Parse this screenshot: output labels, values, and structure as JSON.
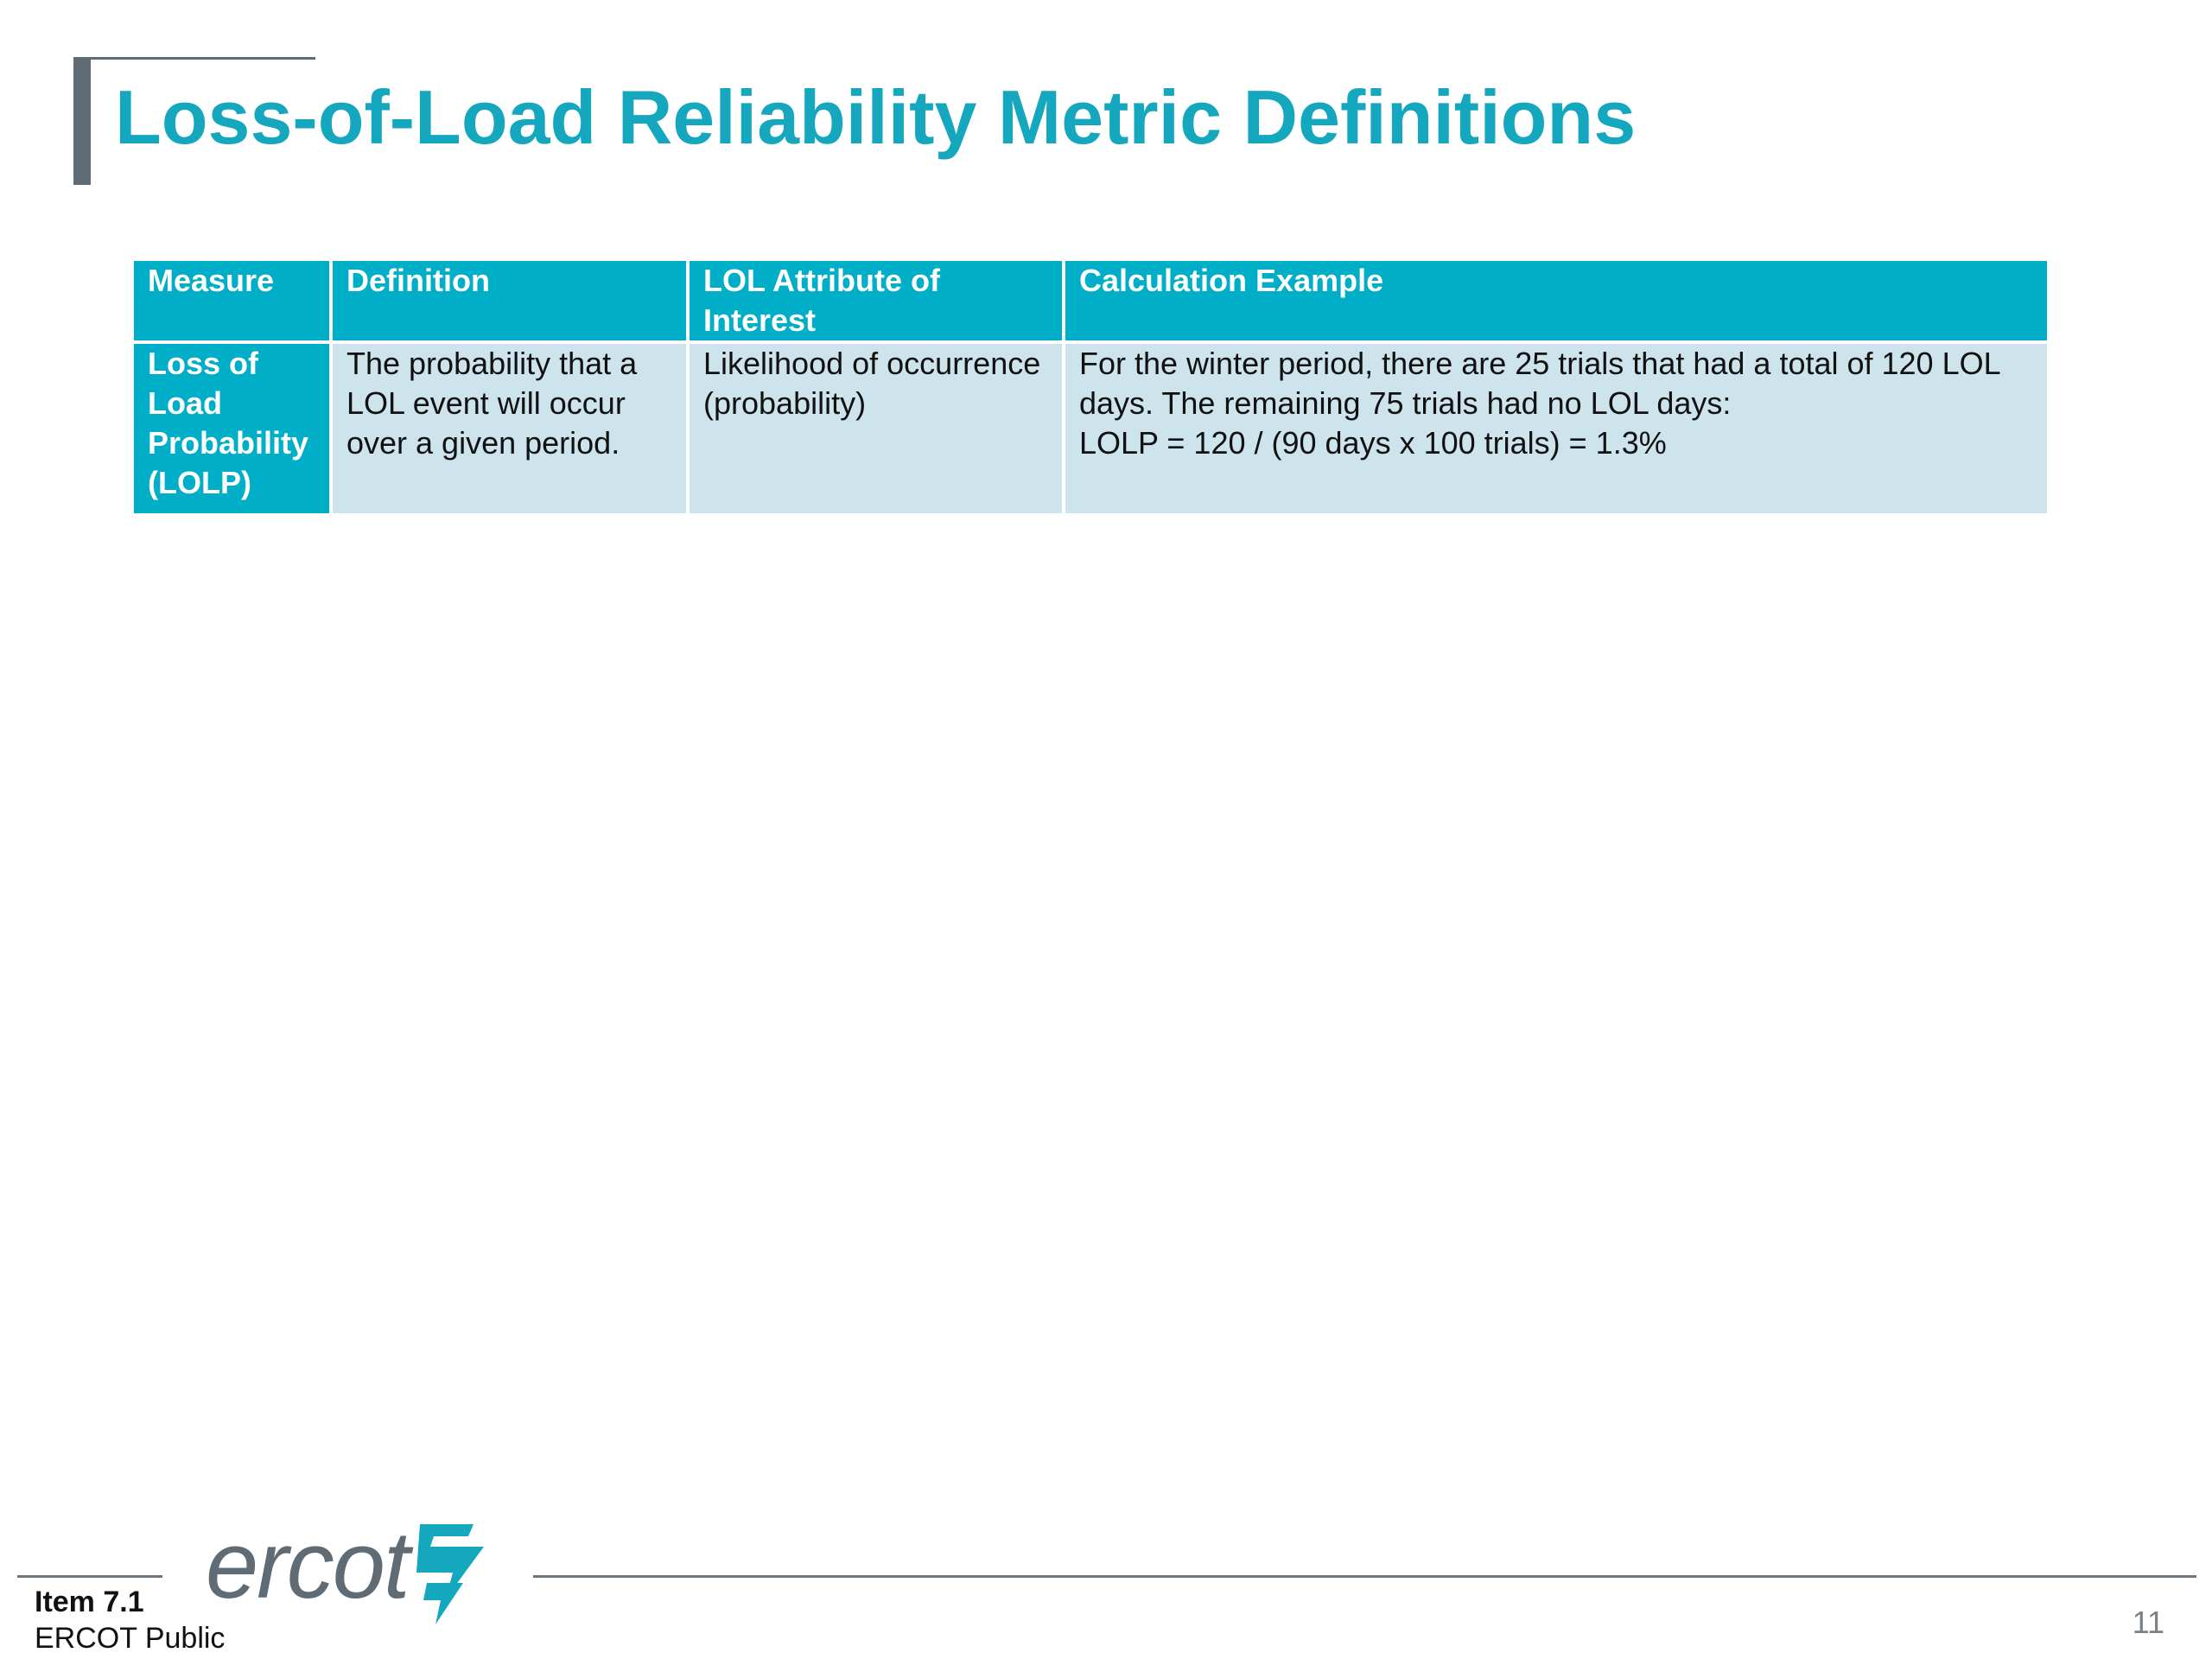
{
  "slide": {
    "title": "Loss-of-Load Reliability Metric Definitions",
    "accent_color": "#14a7bd",
    "header_color": "#00aec7",
    "row_color": "#cde4ec"
  },
  "table": {
    "headers": {
      "measure": "Measure",
      "definition": "Definition",
      "attribute": "LOL Attribute of Interest",
      "example": "Calculation Example"
    },
    "rows": [
      {
        "measure": "Loss of Load Probability (LOLP)",
        "definition": "The probability that a LOL event will occur over a given period.",
        "attribute": "Likelihood of occurrence (probability)",
        "example_line1": "For the winter period, there are 25 trials that had a total of 120 LOL days. The remaining 75 trials had no LOL days:",
        "example_line2": "LOLP = 120 / (90 days x 100 trials) = 1.3%"
      }
    ]
  },
  "footer": {
    "logo_text": "ercot",
    "logo_icon": "ercot-lightning-bolt-icon",
    "item_label": "Item 7.1",
    "classification": "ERCOT Public",
    "page_number": "11"
  }
}
